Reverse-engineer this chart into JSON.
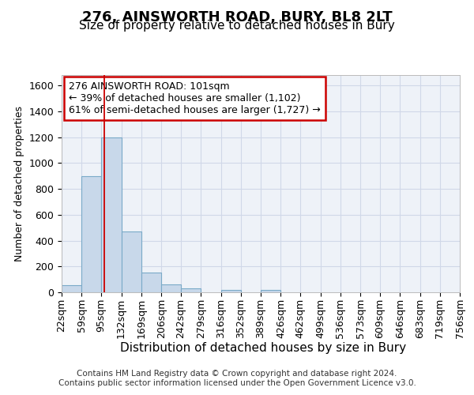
{
  "title": "276, AINSWORTH ROAD, BURY, BL8 2LT",
  "subtitle": "Size of property relative to detached houses in Bury",
  "xlabel": "Distribution of detached houses by size in Bury",
  "ylabel": "Number of detached properties",
  "bin_edges": [
    22,
    59,
    95,
    132,
    169,
    206,
    242,
    279,
    316,
    352,
    389,
    426,
    462,
    499,
    536,
    573,
    609,
    646,
    683,
    719,
    756
  ],
  "bar_heights": [
    55,
    900,
    1200,
    470,
    150,
    60,
    30,
    0,
    20,
    0,
    20,
    0,
    0,
    0,
    0,
    0,
    0,
    0,
    0,
    0
  ],
  "bar_color": "#c8d8ea",
  "bar_edgecolor": "#7aaac8",
  "grid_color": "#d0d8e8",
  "background_color": "#eef2f8",
  "red_line_x": 101,
  "annotation_text": "276 AINSWORTH ROAD: 101sqm\n← 39% of detached houses are smaller (1,102)\n61% of semi-detached houses are larger (1,727) →",
  "annotation_box_color": "#ffffff",
  "annotation_box_edgecolor": "#cc0000",
  "ylim": [
    0,
    1680
  ],
  "yticks": [
    0,
    200,
    400,
    600,
    800,
    1000,
    1200,
    1400,
    1600
  ],
  "footer_text": "Contains HM Land Registry data © Crown copyright and database right 2024.\nContains public sector information licensed under the Open Government Licence v3.0.",
  "title_fontsize": 13,
  "subtitle_fontsize": 11,
  "xlabel_fontsize": 11,
  "ylabel_fontsize": 9,
  "tick_fontsize": 9,
  "footer_fontsize": 7.5,
  "annotation_fontsize": 9
}
